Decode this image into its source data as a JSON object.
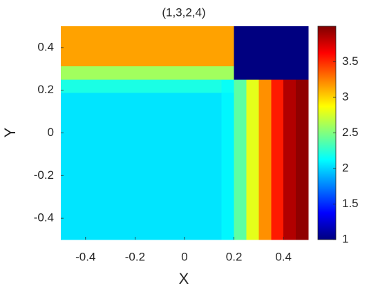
{
  "chart_data": {
    "type": "heatmap",
    "title": "(1,3,2,4)",
    "xlabel": "X",
    "ylabel": "Y",
    "colormap": "jet",
    "xlim": [
      -0.5,
      0.5
    ],
    "ylim": [
      -0.5,
      0.5
    ],
    "xticks": [
      -0.4,
      -0.2,
      0,
      0.2,
      0.4
    ],
    "yticks": [
      -0.4,
      -0.2,
      0,
      0.2,
      0.4
    ],
    "clim": [
      1,
      4
    ],
    "cticks": [
      1,
      1.5,
      2,
      2.5,
      3,
      3.5
    ],
    "x": [
      -0.475,
      -0.425,
      -0.375,
      -0.325,
      -0.275,
      -0.225,
      -0.175,
      -0.125,
      -0.075,
      -0.025,
      0.025,
      0.075,
      0.125,
      0.175,
      0.225,
      0.275,
      0.325,
      0.375,
      0.425,
      0.475
    ],
    "y": [
      0.46875,
      0.40625,
      0.34375,
      0.28125,
      0.21875,
      0.15625,
      0.09375,
      0.03125,
      -0.03125,
      -0.09375,
      -0.15625,
      -0.21875,
      -0.28125,
      -0.34375,
      -0.40625,
      -0.46875
    ],
    "z": [
      [
        3.15,
        3.15,
        3.15,
        3.15,
        3.15,
        3.15,
        3.15,
        3.15,
        3.15,
        3.15,
        3.15,
        3.15,
        3.15,
        3.15,
        1,
        1,
        1,
        1,
        1,
        1
      ],
      [
        3.15,
        3.15,
        3.15,
        3.15,
        3.15,
        3.15,
        3.15,
        3.15,
        3.15,
        3.15,
        3.15,
        3.15,
        3.15,
        3.15,
        1,
        1,
        1,
        1,
        1,
        1
      ],
      [
        3.15,
        3.15,
        3.15,
        3.15,
        3.15,
        3.15,
        3.15,
        3.15,
        3.15,
        3.15,
        3.15,
        3.15,
        3.15,
        3.15,
        1,
        1,
        1,
        1,
        1,
        1
      ],
      [
        2.6,
        2.6,
        2.6,
        2.6,
        2.6,
        2.6,
        2.6,
        2.6,
        2.6,
        2.6,
        2.6,
        2.6,
        2.6,
        2.6,
        1,
        1,
        1,
        1,
        1,
        1
      ],
      [
        2.2,
        2.2,
        2.2,
        2.2,
        2.2,
        2.2,
        2.2,
        2.2,
        2.2,
        2.2,
        2.2,
        2.2,
        2.2,
        2.15,
        2.4,
        2.8,
        3.2,
        3.55,
        3.85,
        3.95
      ],
      [
        2.05,
        2.05,
        2.05,
        2.05,
        2.05,
        2.05,
        2.05,
        2.05,
        2.05,
        2.05,
        2.05,
        2.05,
        2.05,
        2.1,
        2.4,
        2.8,
        3.2,
        3.55,
        3.85,
        3.95
      ],
      [
        2.05,
        2.05,
        2.05,
        2.05,
        2.05,
        2.05,
        2.05,
        2.05,
        2.05,
        2.05,
        2.05,
        2.05,
        2.05,
        2.1,
        2.4,
        2.8,
        3.2,
        3.55,
        3.85,
        3.95
      ],
      [
        2.05,
        2.05,
        2.05,
        2.05,
        2.05,
        2.05,
        2.05,
        2.05,
        2.05,
        2.05,
        2.05,
        2.05,
        2.05,
        2.1,
        2.4,
        2.8,
        3.2,
        3.55,
        3.85,
        3.95
      ],
      [
        2.05,
        2.05,
        2.05,
        2.05,
        2.05,
        2.05,
        2.05,
        2.05,
        2.05,
        2.05,
        2.05,
        2.05,
        2.05,
        2.1,
        2.4,
        2.8,
        3.2,
        3.55,
        3.85,
        3.95
      ],
      [
        2.05,
        2.05,
        2.05,
        2.05,
        2.05,
        2.05,
        2.05,
        2.05,
        2.05,
        2.05,
        2.05,
        2.05,
        2.05,
        2.1,
        2.4,
        2.8,
        3.2,
        3.55,
        3.85,
        3.95
      ],
      [
        2.05,
        2.05,
        2.05,
        2.05,
        2.05,
        2.05,
        2.05,
        2.05,
        2.05,
        2.05,
        2.05,
        2.05,
        2.05,
        2.1,
        2.4,
        2.8,
        3.2,
        3.55,
        3.85,
        3.95
      ],
      [
        2.05,
        2.05,
        2.05,
        2.05,
        2.05,
        2.05,
        2.05,
        2.05,
        2.05,
        2.05,
        2.05,
        2.05,
        2.05,
        2.1,
        2.4,
        2.8,
        3.2,
        3.55,
        3.85,
        3.95
      ],
      [
        2.05,
        2.05,
        2.05,
        2.05,
        2.05,
        2.05,
        2.05,
        2.05,
        2.05,
        2.05,
        2.05,
        2.05,
        2.05,
        2.1,
        2.4,
        2.8,
        3.2,
        3.55,
        3.85,
        3.95
      ],
      [
        2.05,
        2.05,
        2.05,
        2.05,
        2.05,
        2.05,
        2.05,
        2.05,
        2.05,
        2.05,
        2.05,
        2.05,
        2.05,
        2.1,
        2.4,
        2.8,
        3.2,
        3.55,
        3.85,
        3.95
      ],
      [
        2.05,
        2.05,
        2.05,
        2.05,
        2.05,
        2.05,
        2.05,
        2.05,
        2.05,
        2.05,
        2.05,
        2.05,
        2.05,
        2.1,
        2.4,
        2.8,
        3.2,
        3.55,
        3.85,
        3.95
      ],
      [
        2.05,
        2.05,
        2.05,
        2.05,
        2.05,
        2.05,
        2.05,
        2.05,
        2.05,
        2.05,
        2.05,
        2.05,
        2.05,
        2.1,
        2.4,
        2.8,
        3.2,
        3.55,
        3.85,
        3.95
      ]
    ]
  }
}
